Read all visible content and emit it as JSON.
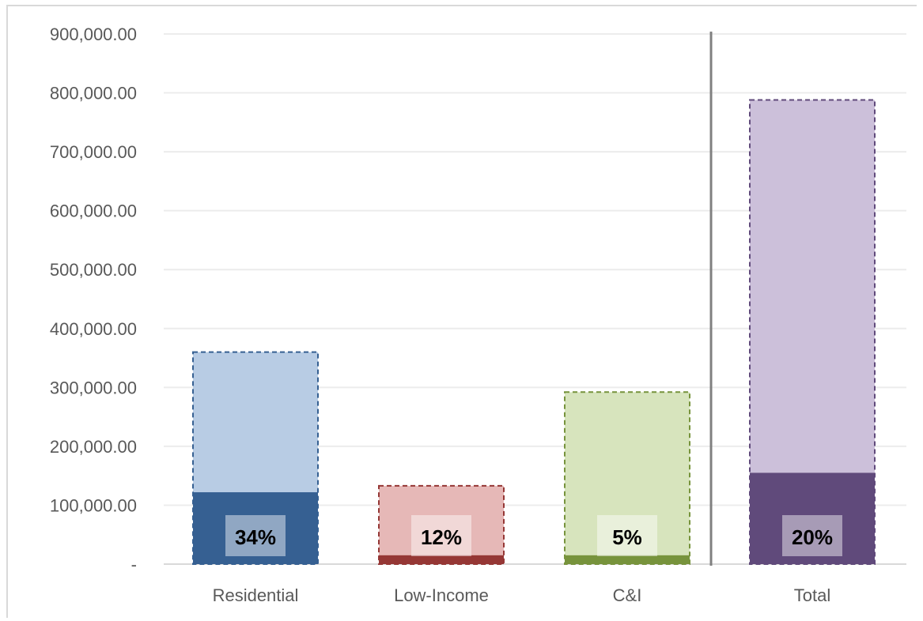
{
  "chart_data": {
    "type": "bar",
    "stacked": "overlay",
    "categories": [
      "Residential",
      "Low-Income",
      "C&I",
      "Total"
    ],
    "series": [
      {
        "values": [
          360000,
          133000,
          292000,
          788000
        ],
        "style": "dashed-outline-light"
      },
      {
        "values": [
          122000,
          15000,
          15000,
          155000
        ],
        "style": "solid-dark"
      }
    ],
    "data_labels": [
      "34%",
      "12%",
      "5%",
      "20%"
    ],
    "colors": {
      "light": [
        "#b8cce4",
        "#e6b8b7",
        "#d7e4bd",
        "#ccc0da"
      ],
      "dark": [
        "#366092",
        "#953735",
        "#77933c",
        "#604a7b"
      ],
      "outline": [
        "#366092",
        "#953735",
        "#77933c",
        "#604a7b"
      ],
      "label_box": "rgba(255,255,255,0.45)"
    },
    "y_ticks": [
      "-",
      "100,000.00",
      "200,000.00",
      "300,000.00",
      "400,000.00",
      "500,000.00",
      "600,000.00",
      "700,000.00",
      "800,000.00",
      "900,000.00"
    ],
    "ylim": [
      0,
      900000
    ],
    "grid": true,
    "separator_before": "Total",
    "title": "",
    "xlabel": "",
    "ylabel": ""
  }
}
